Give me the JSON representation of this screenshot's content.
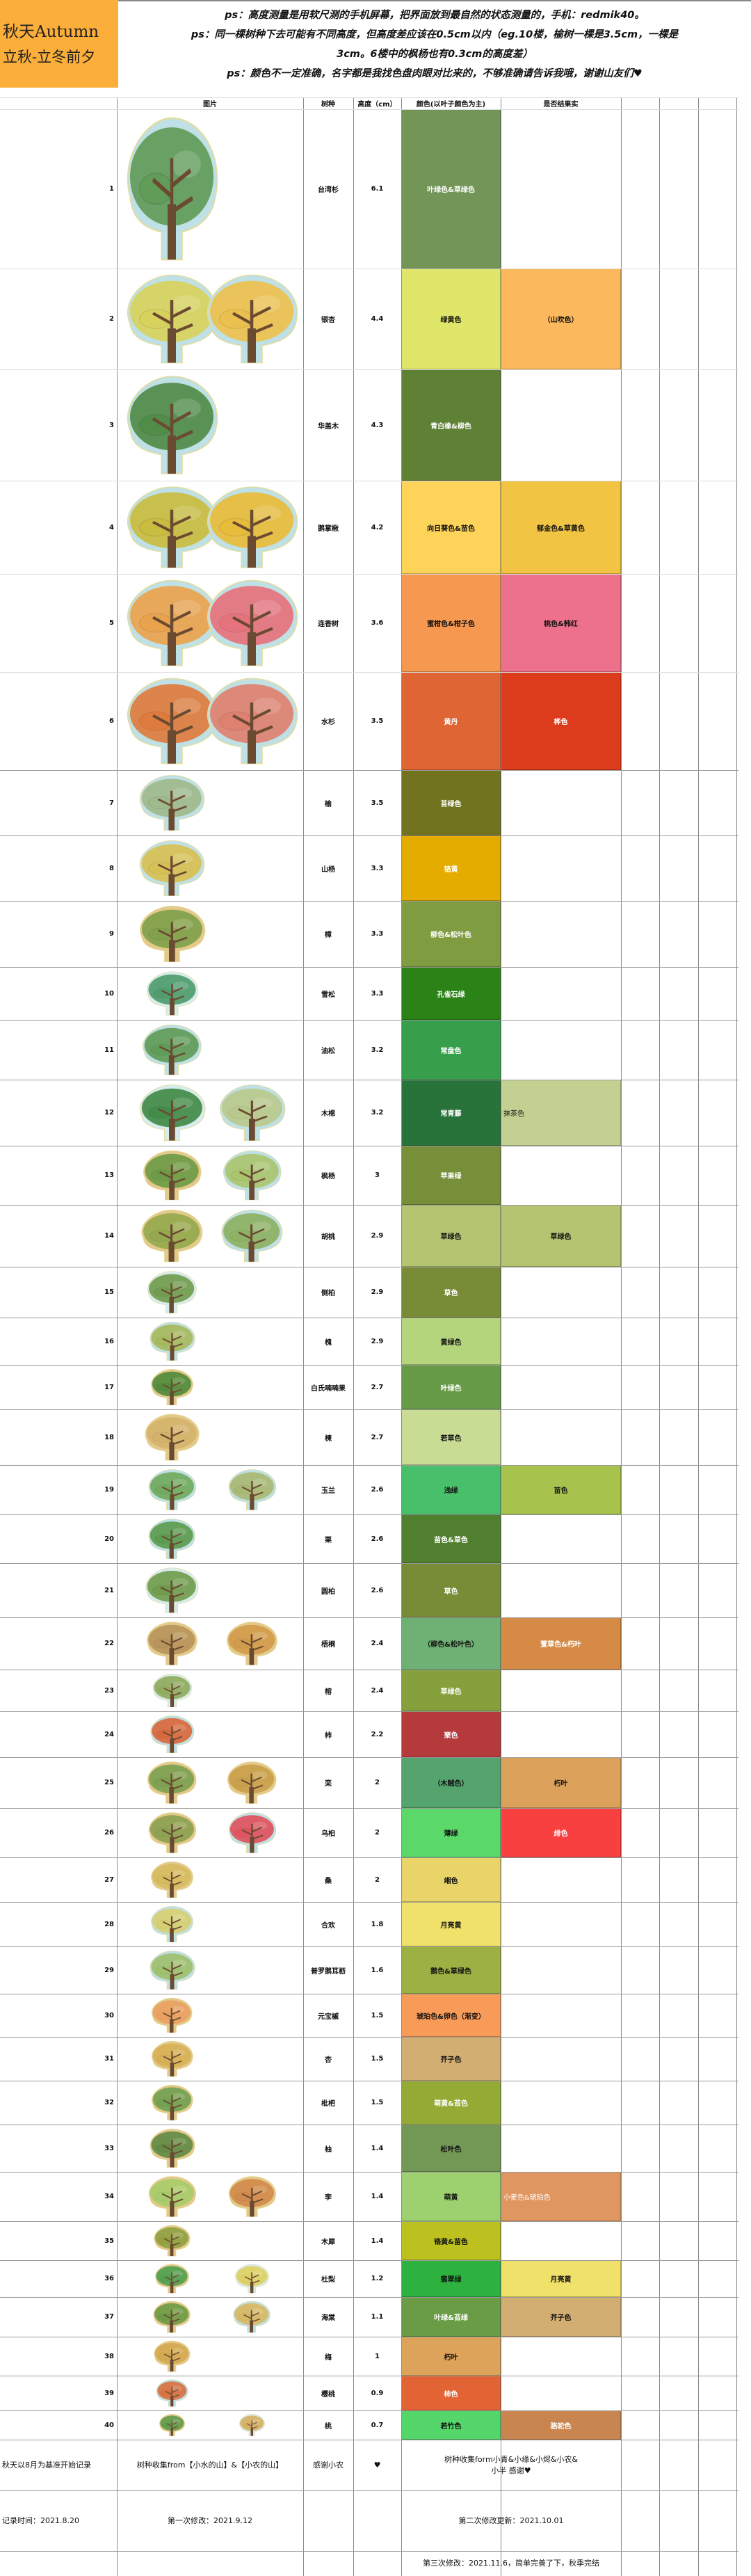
{
  "title": {
    "line1": "秋天Autumn",
    "line2": "立秋-立冬前夕",
    "bg": "#fbae3a"
  },
  "notes": [
    "ps：高度测量是用软尺测的手机屏幕，把界面放到最自然的状态测量的，手机：redmik40。",
    "ps：同一棵树种下去可能有不同高度，但高度差应该在0.5cm以内（eg.10楼，榆树一棵是3.5cm，一棵是",
    "3cm。6楼中的枫杨也有0.3cm的高度差）",
    "ps：颜色不一定准确，名字都是我找色盘肉眼对比来的，不够准确请告诉我哦，谢谢山友们♥"
  ],
  "headers": {
    "image": "图片",
    "species": "树种",
    "height": "高度（cm）",
    "color": "颜色(以叶子颜色为主)",
    "fruit": "是否结果实"
  },
  "rows": [
    {
      "n": "1",
      "species": "台湾杉",
      "height": "6.1",
      "color": {
        "name": "叶绿色&草绿色",
        "bg": "#739558",
        "fg": "#fff"
      },
      "fruit": null,
      "trees": [
        {
          "canopy": "#5f9a55",
          "bg": "#bfe0e4"
        }
      ]
    },
    {
      "n": "2",
      "species": "银杏",
      "height": "4.4",
      "color": {
        "name": "绿黄色",
        "bg": "#e0e66a",
        "fg": "#111"
      },
      "fruit": {
        "name": "（山吹色）",
        "bg": "#fcb85c",
        "fg": "#111"
      },
      "trees": [
        {
          "canopy": "#d8d25a",
          "bg": "#bfe0e4"
        },
        {
          "canopy": "#eec04a",
          "bg": "#bfe0e4"
        }
      ]
    },
    {
      "n": "3",
      "species": "华盖木",
      "height": "4.3",
      "color": {
        "name": "青白橡&柳色",
        "bg": "#5e8135",
        "fg": "#fff"
      },
      "fruit": null,
      "trees": [
        {
          "canopy": "#4f8a45",
          "bg": "#bfe0e4"
        }
      ]
    },
    {
      "n": "4",
      "species": "鹅掌楸",
      "height": "4.2",
      "color": {
        "name": "向日葵色&苗色",
        "bg": "#fdd35a",
        "fg": "#111"
      },
      "fruit": {
        "name": "郁金色&草黄色",
        "bg": "#f1c444",
        "fg": "#111"
      },
      "trees": [
        {
          "canopy": "#c9bb3c",
          "bg": "#bfe0e4"
        },
        {
          "canopy": "#e9bb36",
          "bg": "#bfe0e4"
        }
      ]
    },
    {
      "n": "5",
      "species": "连香树",
      "height": "3.6",
      "color": {
        "name": "蜜柑色&柑子色",
        "bg": "#f79850",
        "fg": "#111"
      },
      "fruit": {
        "name": "桃色&韩红",
        "bg": "#ee718c",
        "fg": "#111"
      },
      "trees": [
        {
          "canopy": "#eba24a",
          "bg": "#bfe0e4"
        },
        {
          "canopy": "#e7707a",
          "bg": "#bfe0e4"
        }
      ]
    },
    {
      "n": "6",
      "species": "水杉",
      "height": "3.5",
      "color": {
        "name": "黄丹",
        "bg": "#e06535",
        "fg": "#fff"
      },
      "fruit": {
        "name": "桦色",
        "bg": "#dd3c1c",
        "fg": "#fff"
      },
      "trees": [
        {
          "canopy": "#df7a3a",
          "bg": "#bfe0e4"
        },
        {
          "canopy": "#e07f6e",
          "bg": "#bfe0e4"
        }
      ]
    },
    {
      "n": "7",
      "species": "榆",
      "height": "3.5",
      "color": {
        "name": "苔绿色",
        "bg": "#71731f",
        "fg": "#fff"
      },
      "fruit": null,
      "trees": [
        {
          "canopy": "#9fb98a",
          "bg": "#bfe0e4"
        }
      ]
    },
    {
      "n": "8",
      "species": "山杨",
      "height": "3.3",
      "color": {
        "name": "铬黄",
        "bg": "#e5ac00",
        "fg": "#fff"
      },
      "fruit": null,
      "trees": [
        {
          "canopy": "#d8c050",
          "bg": "#bfe0e4"
        }
      ]
    },
    {
      "n": "9",
      "species": "樟",
      "height": "3.3",
      "color": {
        "name": "柳色&松叶色",
        "bg": "#809c40",
        "fg": "#fff"
      },
      "fruit": null,
      "trees": [
        {
          "canopy": "#7ea04a",
          "bg": "#e3c98a"
        }
      ]
    },
    {
      "n": "10",
      "species": "雪松",
      "height": "3.3",
      "color": {
        "name": "孔雀石绿",
        "bg": "#2b8217",
        "fg": "#fff"
      },
      "fruit": null,
      "trees": [
        {
          "canopy": "#4c9a6a",
          "bg": "#d7ecec"
        }
      ]
    },
    {
      "n": "11",
      "species": "油松",
      "height": "3.2",
      "color": {
        "name": "常盘色",
        "bg": "#379e4c",
        "fg": "#fff"
      },
      "fruit": null,
      "trees": [
        {
          "canopy": "#5f9a55",
          "bg": "#bfe0e4"
        }
      ]
    },
    {
      "n": "12",
      "species": "木棉",
      "height": "3.2",
      "color": {
        "name": "常青藤",
        "bg": "#27733a",
        "fg": "#fff"
      },
      "fruit": {
        "name": "抹茶色",
        "bg": "#c2d192",
        "fg": "#111",
        "align": "left"
      },
      "trees": [
        {
          "canopy": "#3f8a45",
          "bg": "#d7ecec"
        },
        {
          "canopy": "#b9c98a",
          "bg": "#bfe0e4"
        }
      ]
    },
    {
      "n": "13",
      "species": "枫杨",
      "height": "3",
      "color": {
        "name": "苹果绿",
        "bg": "#778f38",
        "fg": "#fff"
      },
      "fruit": null,
      "trees": [
        {
          "canopy": "#6a9a45",
          "bg": "#e3c98a"
        },
        {
          "canopy": "#a9c46a",
          "bg": "#bfe0e4"
        }
      ]
    },
    {
      "n": "14",
      "species": "胡桃",
      "height": "2.9",
      "color": {
        "name": "草绿色",
        "bg": "#b4c572",
        "fg": "#111"
      },
      "fruit": {
        "name": "草绿色",
        "bg": "#b4c572",
        "fg": "#111"
      },
      "trees": [
        {
          "canopy": "#93a84c",
          "bg": "#e3c98a"
        },
        {
          "canopy": "#8db060",
          "bg": "#bfe0e4"
        }
      ]
    },
    {
      "n": "15",
      "species": "侧柏",
      "height": "2.9",
      "color": {
        "name": "草色",
        "bg": "#788c37",
        "fg": "#fff"
      },
      "fruit": null,
      "trees": [
        {
          "canopy": "#6f9a4a",
          "bg": "#d7ecec"
        }
      ]
    },
    {
      "n": "16",
      "species": "槐",
      "height": "2.9",
      "color": {
        "name": "黄绿色",
        "bg": "#b5d57c",
        "fg": "#111"
      },
      "fruit": null,
      "trees": [
        {
          "canopy": "#a6b85a",
          "bg": "#bfe0e4"
        }
      ]
    },
    {
      "n": "17",
      "species": "白氏喃喃果",
      "height": "2.7",
      "color": {
        "name": "叶绿色",
        "bg": "#679b47",
        "fg": "#fff"
      },
      "fruit": null,
      "trees": [
        {
          "canopy": "#4f8a3a",
          "bg": "#e3c98a"
        }
      ]
    },
    {
      "n": "18",
      "species": "楝",
      "height": "2.7",
      "color": {
        "name": "若草色",
        "bg": "#c9dc94",
        "fg": "#111"
      },
      "fruit": null,
      "trees": [
        {
          "canopy": "#d4b26a",
          "bg": "#e3c98a"
        }
      ]
    },
    {
      "n": "19",
      "species": "玉兰",
      "height": "2.6",
      "color": {
        "name": "浅绿",
        "bg": "#48bf6a",
        "fg": "#111"
      },
      "fruit": {
        "name": "苗色",
        "bg": "#a8c24e",
        "fg": "#111"
      },
      "trees": [
        {
          "canopy": "#6fa85a",
          "bg": "#bfe0e4"
        },
        {
          "canopy": "#a8b870",
          "bg": "#bfe0e4"
        }
      ]
    },
    {
      "n": "20",
      "species": "栗",
      "height": "2.6",
      "color": {
        "name": "苗色&草色",
        "bg": "#507f2f",
        "fg": "#fff"
      },
      "fruit": null,
      "trees": [
        {
          "canopy": "#5a9a4a",
          "bg": "#bfe0e4"
        }
      ]
    },
    {
      "n": "21",
      "species": "圆柏",
      "height": "2.6",
      "color": {
        "name": "草色",
        "bg": "#788c37",
        "fg": "#fff"
      },
      "fruit": null,
      "trees": [
        {
          "canopy": "#6f9a4a",
          "bg": "#d7ecec"
        }
      ]
    },
    {
      "n": "22",
      "species": "梧桐",
      "height": "2.4",
      "color": {
        "name": "（柳色&松叶色）",
        "bg": "#6fb075",
        "fg": "#111"
      },
      "fruit": {
        "name": "萱草色&朽叶",
        "bg": "#d58b45",
        "fg": "#fff"
      },
      "trees": [
        {
          "canopy": "#b7935a",
          "bg": "#e3c98a"
        },
        {
          "canopy": "#d19a4a",
          "bg": "#e3c98a"
        }
      ]
    },
    {
      "n": "23",
      "species": "榕",
      "height": "2.4",
      "color": {
        "name": "草绿色",
        "bg": "#85a03d",
        "fg": "#fff"
      },
      "fruit": null,
      "trees": [
        {
          "canopy": "#8faa5a",
          "bg": "#d7ecec"
        }
      ]
    },
    {
      "n": "24",
      "species": "柿",
      "height": "2.2",
      "color": {
        "name": "栗色",
        "bg": "#b43a3c",
        "fg": "#fff"
      },
      "fruit": null,
      "trees": [
        {
          "canopy": "#d9663a",
          "bg": "#bfe0e4"
        }
      ]
    },
    {
      "n": "25",
      "species": "栾",
      "height": "2",
      "color": {
        "name": "（木贼色）",
        "bg": "#55a36d",
        "fg": "#111"
      },
      "fruit": {
        "name": "朽叶",
        "bg": "#dca15a",
        "fg": "#111"
      },
      "trees": [
        {
          "canopy": "#7aa050",
          "bg": "#e3c98a"
        },
        {
          "canopy": "#c9a04a",
          "bg": "#e3c98a"
        }
      ]
    },
    {
      "n": "26",
      "species": "乌桕",
      "height": "2",
      "color": {
        "name": "薄绿",
        "bg": "#5ad86a",
        "fg": "#111"
      },
      "fruit": {
        "name": "绯色",
        "bg": "#f84040",
        "fg": "#fff"
      },
      "trees": [
        {
          "canopy": "#8aa050",
          "bg": "#e3c98a"
        },
        {
          "canopy": "#e0505a",
          "bg": "#bfe0e4"
        }
      ]
    },
    {
      "n": "27",
      "species": "桑",
      "height": "2",
      "color": {
        "name": "缃色",
        "bg": "#e8d469",
        "fg": "#111"
      },
      "fruit": null,
      "trees": [
        {
          "canopy": "#d6bb60",
          "bg": "#e3c98a"
        }
      ]
    },
    {
      "n": "28",
      "species": "合欢",
      "height": "1.8",
      "color": {
        "name": "月亮黄",
        "bg": "#efe16a",
        "fg": "#111"
      },
      "fruit": null,
      "trees": [
        {
          "canopy": "#d8cf70",
          "bg": "#bfe0e4"
        }
      ]
    },
    {
      "n": "29",
      "species": "普罗鹅耳枥",
      "height": "1.6",
      "color": {
        "name": "鹅色&草绿色",
        "bg": "#9cb044",
        "fg": "#111"
      },
      "fruit": null,
      "trees": [
        {
          "canopy": "#9fc06a",
          "bg": "#bfe0e4"
        }
      ]
    },
    {
      "n": "30",
      "species": "元宝槭",
      "height": "1.5",
      "color": {
        "name": "琥珀色&卵色（渐变）",
        "bg": "#f99b58",
        "fg": "#111"
      },
      "fruit": null,
      "trees": [
        {
          "canopy": "#eaa060",
          "bg": "#e3c98a"
        }
      ]
    },
    {
      "n": "31",
      "species": "杏",
      "height": "1.5",
      "color": {
        "name": "芥子色",
        "bg": "#d3ae72",
        "fg": "#111"
      },
      "fruit": null,
      "trees": [
        {
          "canopy": "#d6b055",
          "bg": "#e3c98a"
        }
      ]
    },
    {
      "n": "32",
      "species": "枇杷",
      "height": "1.5",
      "color": {
        "name": "萌黄&苔色",
        "bg": "#93ab34",
        "fg": "#fff"
      },
      "fruit": null,
      "trees": [
        {
          "canopy": "#6fa050",
          "bg": "#e3c98a"
        }
      ]
    },
    {
      "n": "33",
      "species": "柚",
      "height": "1.4",
      "color": {
        "name": "松叶色",
        "bg": "#739755",
        "fg": "#111"
      },
      "fruit": null,
      "trees": [
        {
          "canopy": "#5f8a45",
          "bg": "#e3c98a"
        }
      ]
    },
    {
      "n": "34",
      "species": "李",
      "height": "1.4",
      "color": {
        "name": "萌黄",
        "bg": "#9dd06e",
        "fg": "#111"
      },
      "fruit": {
        "name": "小麦色&琥珀色",
        "bg": "#e09660",
        "fg": "#fff",
        "align": "left"
      },
      "trees": [
        {
          "canopy": "#a6cc6a",
          "bg": "#e3c98a"
        },
        {
          "canopy": "#d08a4a",
          "bg": "#e3c98a"
        }
      ]
    },
    {
      "n": "35",
      "species": "木犀",
      "height": "1.4",
      "color": {
        "name": "铬黄&苗色",
        "bg": "#bcc11f",
        "fg": "#111"
      },
      "fruit": null,
      "trees": [
        {
          "canopy": "#8fa040",
          "bg": "#e3c98a"
        }
      ]
    },
    {
      "n": "36",
      "species": "杜梨",
      "height": "1.2",
      "color": {
        "name": "翡翠绿",
        "bg": "#2db240",
        "fg": "#111"
      },
      "fruit": {
        "name": "月亮黄",
        "bg": "#efe16a",
        "fg": "#111"
      },
      "trees": [
        {
          "canopy": "#4fa050",
          "bg": "#e3c98a"
        },
        {
          "canopy": "#e0d060",
          "bg": "#d7ecec"
        }
      ]
    },
    {
      "n": "37",
      "species": "海棠",
      "height": "1.1",
      "color": {
        "name": "叶绿&苔绿",
        "bg": "#699c45",
        "fg": "#fff"
      },
      "fruit": {
        "name": "芥子色",
        "bg": "#d3ae72",
        "fg": "#111"
      },
      "trees": [
        {
          "canopy": "#6a9a45",
          "bg": "#e3c98a"
        },
        {
          "canopy": "#d8b860",
          "bg": "#bfe0e4"
        }
      ]
    },
    {
      "n": "38",
      "species": "梅",
      "height": "1",
      "color": {
        "name": "朽叶",
        "bg": "#dda35b",
        "fg": "#111"
      },
      "fruit": null,
      "trees": [
        {
          "canopy": "#d4aa50",
          "bg": "#e3c98a"
        }
      ]
    },
    {
      "n": "39",
      "species": "樱桃",
      "height": "0.9",
      "color": {
        "name": "柿色",
        "bg": "#e26435",
        "fg": "#fff"
      },
      "fruit": null,
      "trees": [
        {
          "canopy": "#d9703e",
          "bg": "#bfe0e4"
        }
      ]
    },
    {
      "n": "40",
      "species": "桃",
      "height": "0.7",
      "color": {
        "name": "若竹色",
        "bg": "#55d66a",
        "fg": "#111"
      },
      "fruit": {
        "name": "骆驼色",
        "bg": "#c8854f",
        "fg": "#fff"
      },
      "trees": [
        {
          "canopy": "#5f9a4a",
          "bg": "#e3c98a"
        },
        {
          "canopy": "#d6b060",
          "bg": "#d7ecec"
        }
      ]
    }
  ],
  "footer": {
    "row1": {
      "c0": "秋天以8月为基准开始记录",
      "c1": "树种收集from【小水的山】&【小农的山】",
      "c2": "感谢小农",
      "c3": "♥",
      "c4": "树种收集form小青&小缘&小烬&小农&小半 感谢♥"
    },
    "row2": {
      "c0": "记录时间：2021.8.20",
      "c1": "第一次修改：2021.9.12",
      "c4": "第二次修改更新：2021.10.01"
    },
    "row3": {
      "c4": "第三次修改：2021.11.6，简单完善了下，秋季完结"
    }
  }
}
